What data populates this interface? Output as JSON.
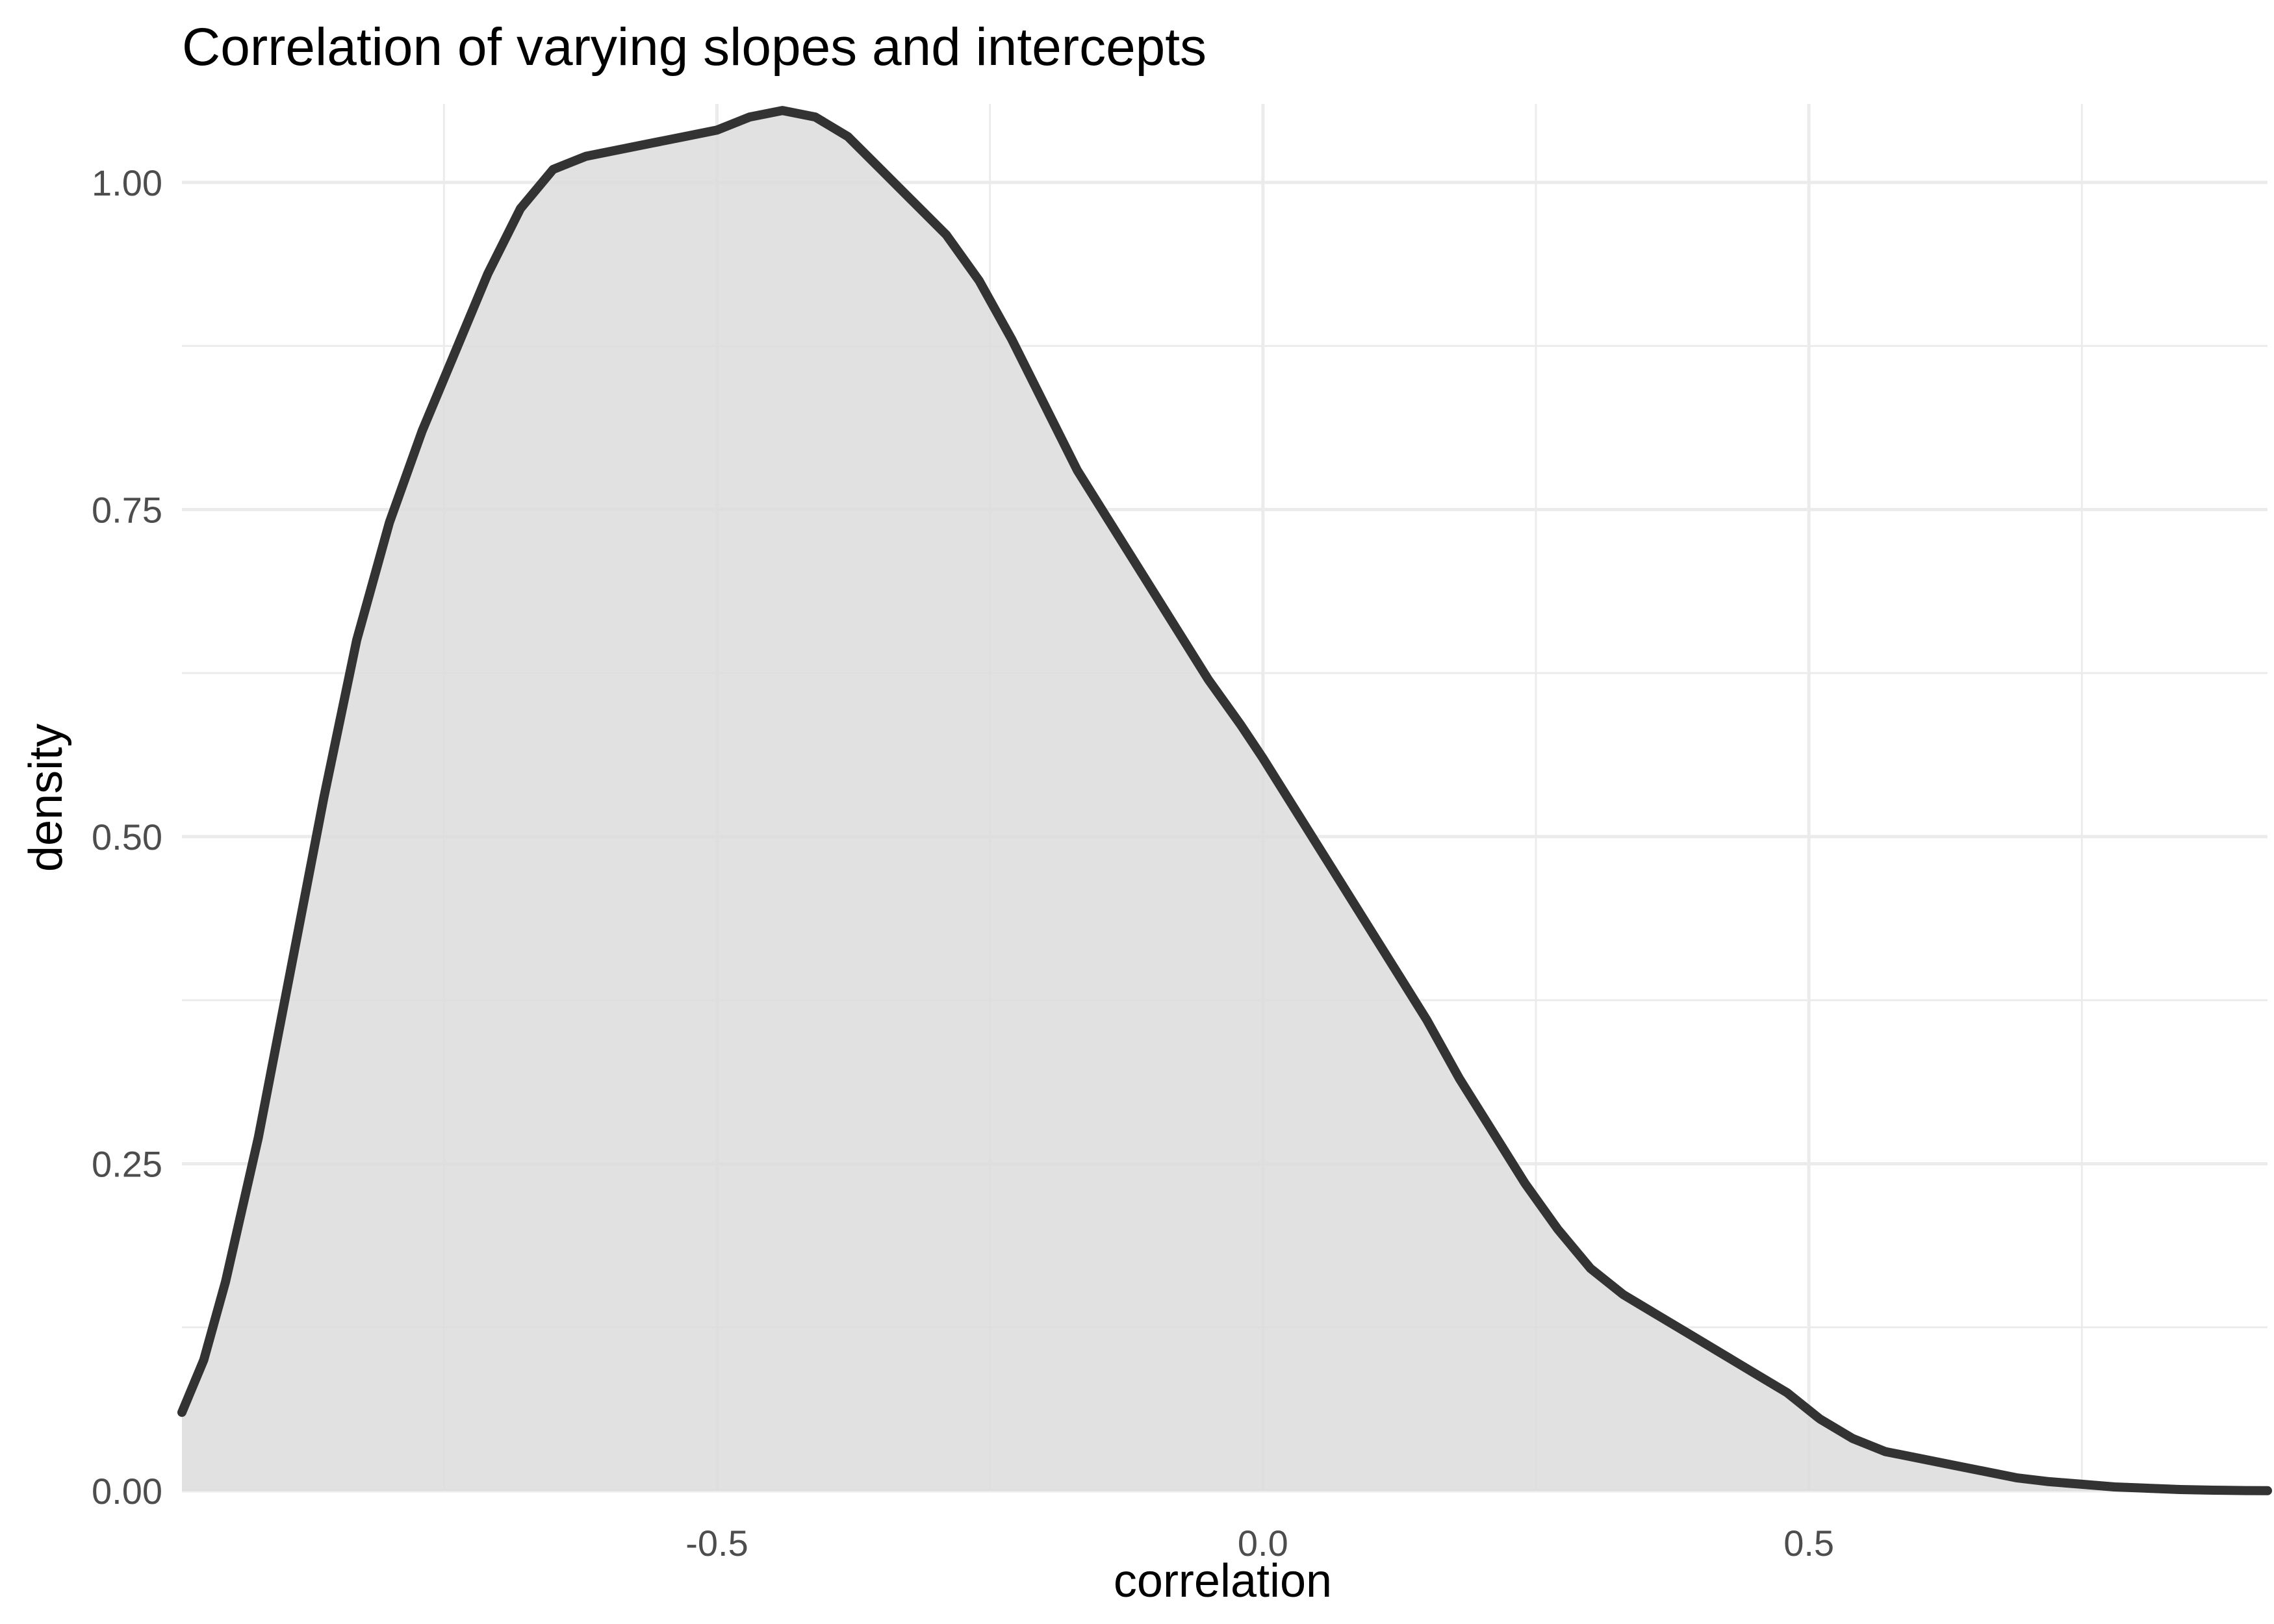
{
  "chart_data": {
    "type": "area",
    "title": "Correlation of varying slopes and intercepts",
    "xlabel": "correlation",
    "ylabel": "density",
    "xlim": [
      -0.99,
      0.92
    ],
    "ylim": [
      0,
      1.06
    ],
    "x_ticks": [
      -0.5,
      0.0,
      0.5
    ],
    "x_tick_labels": [
      "-0.5",
      "0.0",
      "0.5"
    ],
    "y_ticks": [
      0,
      0.25,
      0.5,
      0.75,
      1.0
    ],
    "y_tick_labels": [
      "0.00",
      "0.25",
      "0.50",
      "0.75",
      "1.00"
    ],
    "grid": true,
    "fill_color": "#dcdcdc",
    "line_color": "#333333",
    "series": [
      {
        "x": [
          -0.99,
          -0.97,
          -0.95,
          -0.92,
          -0.89,
          -0.86,
          -0.83,
          -0.8,
          -0.77,
          -0.74,
          -0.71,
          -0.68,
          -0.65,
          -0.62,
          -0.59,
          -0.56,
          -0.53,
          -0.5,
          -0.47,
          -0.44,
          -0.41,
          -0.38,
          -0.35,
          -0.32,
          -0.29,
          -0.26,
          -0.23,
          -0.2,
          -0.17,
          -0.14,
          -0.11,
          -0.08,
          -0.05,
          -0.02,
          0.0,
          0.03,
          0.06,
          0.09,
          0.12,
          0.15,
          0.18,
          0.21,
          0.24,
          0.27,
          0.3,
          0.33,
          0.36,
          0.39,
          0.42,
          0.45,
          0.48,
          0.51,
          0.54,
          0.57,
          0.6,
          0.63,
          0.66,
          0.69,
          0.72,
          0.75,
          0.78,
          0.81,
          0.84,
          0.87,
          0.9,
          0.92
        ],
        "y": [
          0.06,
          0.1,
          0.16,
          0.27,
          0.4,
          0.53,
          0.65,
          0.74,
          0.81,
          0.87,
          0.93,
          0.98,
          1.01,
          1.02,
          1.025,
          1.03,
          1.035,
          1.04,
          1.05,
          1.055,
          1.05,
          1.035,
          1.01,
          0.985,
          0.96,
          0.925,
          0.88,
          0.83,
          0.78,
          0.74,
          0.7,
          0.66,
          0.62,
          0.585,
          0.56,
          0.52,
          0.48,
          0.44,
          0.4,
          0.36,
          0.315,
          0.275,
          0.235,
          0.2,
          0.17,
          0.15,
          0.135,
          0.12,
          0.105,
          0.09,
          0.075,
          0.055,
          0.04,
          0.03,
          0.025,
          0.02,
          0.015,
          0.01,
          0.007,
          0.005,
          0.003,
          0.002,
          0.001,
          0.0005,
          0.0002,
          0.0001
        ]
      }
    ]
  }
}
